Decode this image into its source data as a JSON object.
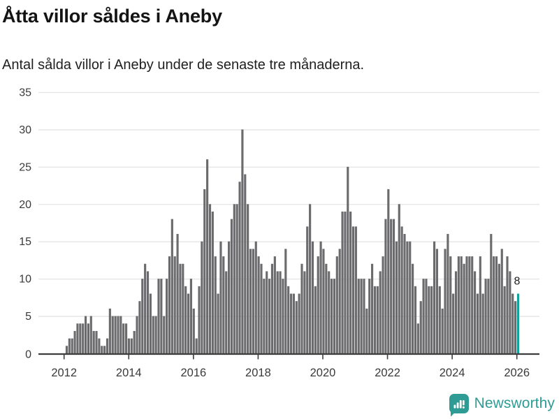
{
  "header": {
    "title": "Åtta villor såldes i Aneby",
    "subtitle": "Antal sålda villor i Aneby under de senaste tre månaderna."
  },
  "chart_data": {
    "type": "bar",
    "title": "Åtta villor såldes i Aneby",
    "subtitle": "Antal sålda villor i Aneby under de senaste tre månaderna.",
    "unit": "sålda villor (rullande tre månader)",
    "frequency": "monthly",
    "start_month": "2012-01",
    "end_month": "2025-12",
    "values_by_year": {
      "2012": [
        1,
        2,
        2,
        3,
        4,
        4,
        4,
        5,
        4,
        5,
        3,
        3
      ],
      "2013": [
        2,
        1,
        1,
        2,
        6,
        5,
        5,
        5,
        5,
        4,
        4,
        2
      ],
      "2014": [
        2,
        3,
        5,
        7,
        10,
        12,
        11,
        8,
        5,
        5,
        10,
        10
      ],
      "2015": [
        5,
        10,
        13,
        18,
        13,
        16,
        12,
        12,
        9,
        8,
        10,
        6
      ],
      "2016": [
        2,
        9,
        15,
        22,
        26,
        20,
        19,
        13,
        8,
        15,
        13,
        11
      ],
      "2017": [
        15,
        18,
        20,
        20,
        23,
        30,
        24,
        20,
        14,
        14,
        15,
        13
      ],
      "2018": [
        12,
        10,
        11,
        10,
        12,
        13,
        11,
        11,
        10,
        14,
        9,
        8
      ],
      "2019": [
        8,
        7,
        8,
        12,
        11,
        17,
        20,
        15,
        9,
        13,
        15,
        14
      ],
      "2020": [
        12,
        11,
        10,
        10,
        13,
        14,
        19,
        19,
        25,
        19,
        17,
        17
      ],
      "2021": [
        10,
        10,
        10,
        6,
        10,
        12,
        9,
        9,
        11,
        13,
        18,
        22
      ],
      "2022": [
        18,
        18,
        15,
        20,
        17,
        16,
        15,
        15,
        12,
        9,
        4,
        7
      ],
      "2023": [
        10,
        10,
        9,
        9,
        15,
        14,
        9,
        6,
        14,
        16,
        13,
        8
      ],
      "2024": [
        11,
        13,
        13,
        12,
        13,
        13,
        13,
        11,
        8,
        13,
        8,
        10
      ],
      "2025": [
        10,
        16,
        13,
        13,
        12,
        14,
        9,
        13,
        11,
        8,
        7,
        8
      ]
    },
    "highlight_last_bar": true,
    "annotation": {
      "text": "8",
      "value": 8
    },
    "y_ticks": [
      0,
      5,
      10,
      15,
      20,
      25,
      30,
      35
    ],
    "ylim": [
      0,
      35
    ],
    "x_tick_labels": [
      "2012",
      "2014",
      "2016",
      "2018",
      "2020",
      "2022",
      "2024",
      "2026"
    ],
    "grid": true,
    "legend": false,
    "colors": {
      "bar": "#6B6B6E",
      "highlight": "#12A19B",
      "gridline": "#E4E4E4",
      "axis": "#3D3D3D",
      "tick_label": "#3A3A3A",
      "annotation": "#222222"
    }
  },
  "footer": {
    "brand": "Newsworthy",
    "brand_color": "#2E9C95"
  }
}
